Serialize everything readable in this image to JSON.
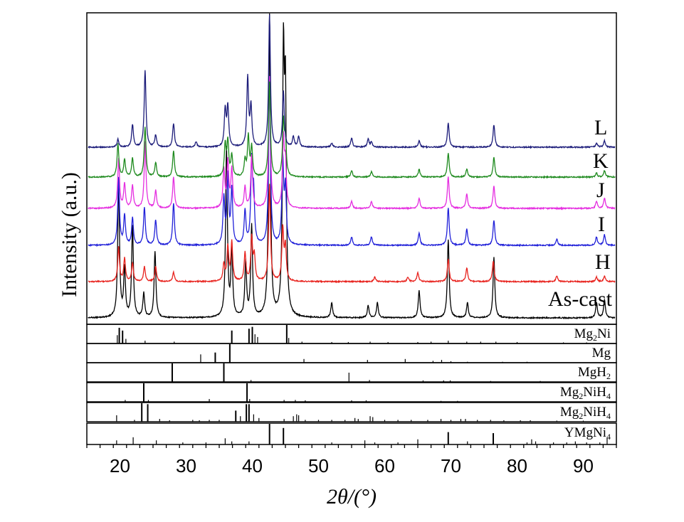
{
  "chart_data": {
    "type": "line",
    "xlabel": "2θ/(°)",
    "ylabel": "Intensity (a.u.)",
    "xlim": [
      15,
      95
    ],
    "x_ticks": [
      "20",
      "30",
      "40",
      "50",
      "60",
      "70",
      "80",
      "90"
    ],
    "grid": false,
    "series": [
      {
        "name": "As-cast",
        "color": "#000000",
        "peaks": [
          [
            19.8,
            45
          ],
          [
            20.7,
            16
          ],
          [
            21.9,
            30
          ],
          [
            23.6,
            8
          ],
          [
            25.3,
            22
          ],
          [
            36.1,
            56
          ],
          [
            36.9,
            22
          ],
          [
            39.0,
            18
          ],
          [
            39.9,
            30
          ],
          [
            42.6,
            100
          ],
          [
            44.7,
            82
          ],
          [
            45.0,
            68
          ],
          [
            52.0,
            5
          ],
          [
            57.5,
            4
          ],
          [
            58.9,
            5
          ],
          [
            65.2,
            9
          ],
          [
            69.6,
            26
          ],
          [
            72.5,
            5
          ],
          [
            76.5,
            20
          ],
          [
            92.0,
            5
          ],
          [
            93.2,
            6
          ]
        ]
      },
      {
        "name": "H",
        "color": "#e8231e",
        "peaks": [
          [
            19.8,
            30
          ],
          [
            20.7,
            20
          ],
          [
            21.9,
            16
          ],
          [
            23.7,
            13
          ],
          [
            25.4,
            13
          ],
          [
            28.1,
            8
          ],
          [
            35.7,
            15
          ],
          [
            36.3,
            30
          ],
          [
            36.9,
            34
          ],
          [
            38.9,
            25
          ],
          [
            39.9,
            38
          ],
          [
            40.3,
            22
          ],
          [
            42.6,
            85
          ],
          [
            44.6,
            46
          ],
          [
            45.0,
            30
          ],
          [
            58.5,
            4
          ],
          [
            63.5,
            4
          ],
          [
            65.0,
            8
          ],
          [
            69.6,
            20
          ],
          [
            72.4,
            12
          ],
          [
            76.4,
            18
          ],
          [
            86.0,
            5
          ],
          [
            92.0,
            4
          ],
          [
            93.2,
            5
          ]
        ]
      },
      {
        "name": "I",
        "color": "#2121d9",
        "peaks": [
          [
            19.8,
            32
          ],
          [
            20.7,
            14
          ],
          [
            21.9,
            13
          ],
          [
            23.7,
            18
          ],
          [
            25.4,
            12
          ],
          [
            28.1,
            20
          ],
          [
            35.7,
            22
          ],
          [
            36.3,
            32
          ],
          [
            36.9,
            26
          ],
          [
            38.9,
            16
          ],
          [
            39.9,
            38
          ],
          [
            40.2,
            22
          ],
          [
            42.6,
            80
          ],
          [
            44.6,
            40
          ],
          [
            45.0,
            26
          ],
          [
            55.0,
            4
          ],
          [
            58.0,
            4
          ],
          [
            65.2,
            6
          ],
          [
            69.6,
            18
          ],
          [
            72.4,
            8
          ],
          [
            76.5,
            12
          ],
          [
            86.0,
            3
          ],
          [
            92.0,
            4
          ],
          [
            93.2,
            5
          ]
        ]
      },
      {
        "name": "J",
        "color": "#e52fe0",
        "peaks": [
          [
            19.8,
            28
          ],
          [
            20.7,
            14
          ],
          [
            21.9,
            13
          ],
          [
            23.8,
            38
          ],
          [
            25.4,
            10
          ],
          [
            28.1,
            18
          ],
          [
            35.7,
            22
          ],
          [
            36.3,
            26
          ],
          [
            36.9,
            22
          ],
          [
            38.9,
            12
          ],
          [
            39.9,
            30
          ],
          [
            42.6,
            75
          ],
          [
            44.7,
            38
          ],
          [
            45.0,
            24
          ],
          [
            55.0,
            4
          ],
          [
            58.0,
            4
          ],
          [
            65.2,
            6
          ],
          [
            69.6,
            18
          ],
          [
            72.4,
            8
          ],
          [
            76.5,
            13
          ],
          [
            92.0,
            4
          ],
          [
            93.2,
            6
          ]
        ]
      },
      {
        "name": "K",
        "color": "#1e8a1e",
        "peaks": [
          [
            19.7,
            25
          ],
          [
            20.7,
            13
          ],
          [
            21.9,
            14
          ],
          [
            23.8,
            38
          ],
          [
            25.4,
            11
          ],
          [
            28.1,
            20
          ],
          [
            35.9,
            24
          ],
          [
            36.3,
            26
          ],
          [
            36.9,
            16
          ],
          [
            38.9,
            12
          ],
          [
            39.4,
            30
          ],
          [
            39.9,
            22
          ],
          [
            42.6,
            72
          ],
          [
            44.7,
            40
          ],
          [
            45.0,
            26
          ],
          [
            55.0,
            5
          ],
          [
            58.0,
            4
          ],
          [
            65.2,
            6
          ],
          [
            69.6,
            18
          ],
          [
            72.4,
            6
          ],
          [
            76.5,
            15
          ],
          [
            92.0,
            3
          ],
          [
            93.2,
            5
          ]
        ]
      },
      {
        "name": "L",
        "color": "#1c1c7a",
        "peaks": [
          [
            19.7,
            6
          ],
          [
            21.9,
            17
          ],
          [
            23.8,
            58
          ],
          [
            25.4,
            9
          ],
          [
            28.1,
            18
          ],
          [
            31.5,
            4
          ],
          [
            35.9,
            28
          ],
          [
            36.3,
            30
          ],
          [
            39.3,
            52
          ],
          [
            39.8,
            30
          ],
          [
            42.6,
            100
          ],
          [
            44.7,
            42
          ],
          [
            46.2,
            8
          ],
          [
            47.0,
            8
          ],
          [
            52.0,
            3
          ],
          [
            55.0,
            7
          ],
          [
            57.5,
            6
          ],
          [
            58.0,
            4
          ],
          [
            65.2,
            5
          ],
          [
            69.6,
            18
          ],
          [
            76.5,
            17
          ],
          [
            92.0,
            3
          ],
          [
            93.2,
            5
          ]
        ]
      }
    ],
    "reference_patterns": [
      {
        "name": "Mg2Ni",
        "lines": [
          [
            19.6,
            0.45
          ],
          [
            19.9,
            0.85
          ],
          [
            20.4,
            0.7
          ],
          [
            20.9,
            0.25
          ],
          [
            23.8,
            0.15
          ],
          [
            28.2,
            0.1
          ],
          [
            36.9,
            0.7
          ],
          [
            39.5,
            0.8
          ],
          [
            40.0,
            0.9
          ],
          [
            40.4,
            0.5
          ],
          [
            40.8,
            0.35
          ],
          [
            45.2,
            1.0
          ],
          [
            45.5,
            0.3
          ],
          [
            47.5,
            0.1
          ],
          [
            52.0,
            0.08
          ],
          [
            54.5,
            0.08
          ],
          [
            57.8,
            0.1
          ],
          [
            60.5,
            0.08
          ],
          [
            65.0,
            0.08
          ],
          [
            67.0,
            0.1
          ],
          [
            69.6,
            0.15
          ],
          [
            72.4,
            0.1
          ],
          [
            74.5,
            0.1
          ],
          [
            76.8,
            0.1
          ],
          [
            80.0,
            0.08
          ],
          [
            87.0,
            0.06
          ],
          [
            90.5,
            0.06
          ]
        ]
      },
      {
        "name": "Mg",
        "lines": [
          [
            32.2,
            0.45
          ],
          [
            34.4,
            0.55
          ],
          [
            36.6,
            1.0
          ],
          [
            47.8,
            0.2
          ],
          [
            57.4,
            0.15
          ],
          [
            63.1,
            0.2
          ],
          [
            67.3,
            0.1
          ],
          [
            68.6,
            0.15
          ],
          [
            70.0,
            0.08
          ],
          [
            72.5,
            0.05
          ],
          [
            77.8,
            0.05
          ],
          [
            81.5,
            0.05
          ]
        ]
      },
      {
        "name": "MgH2",
        "lines": [
          [
            27.9,
            1.0
          ],
          [
            35.7,
            1.0
          ],
          [
            39.8,
            0.1
          ],
          [
            54.6,
            0.5
          ],
          [
            57.7,
            0.1
          ],
          [
            65.8,
            0.08
          ],
          [
            68.9,
            0.08
          ],
          [
            69.9,
            0.08
          ],
          [
            76.0,
            0.05
          ],
          [
            83.5,
            0.05
          ]
        ]
      },
      {
        "name": "Mg2NiH4",
        "lines": [
          [
            20.8,
            0.1
          ],
          [
            23.6,
            1.0
          ],
          [
            24.3,
            0.1
          ],
          [
            33.5,
            0.15
          ],
          [
            39.2,
            1.0
          ],
          [
            39.6,
            0.15
          ],
          [
            44.8,
            0.1
          ],
          [
            46.5,
            0.1
          ],
          [
            48.0,
            0.08
          ],
          [
            55.0,
            0.08
          ],
          [
            57.2,
            0.08
          ],
          [
            68.5,
            0.05
          ],
          [
            71.0,
            0.05
          ]
        ]
      },
      {
        "name": "Mg2NiH4",
        "lines": [
          [
            19.5,
            0.35
          ],
          [
            22.2,
            0.1
          ],
          [
            23.3,
            1.0
          ],
          [
            24.2,
            0.95
          ],
          [
            26.0,
            0.15
          ],
          [
            27.5,
            0.08
          ],
          [
            31.0,
            0.1
          ],
          [
            32.0,
            0.08
          ],
          [
            33.5,
            0.1
          ],
          [
            35.0,
            0.1
          ],
          [
            37.5,
            0.6
          ],
          [
            38.2,
            0.3
          ],
          [
            39.1,
            0.95
          ],
          [
            39.5,
            0.95
          ],
          [
            40.2,
            0.4
          ],
          [
            41.0,
            0.2
          ],
          [
            44.8,
            0.15
          ],
          [
            46.2,
            0.3
          ],
          [
            46.7,
            0.4
          ],
          [
            47.0,
            0.35
          ],
          [
            48.0,
            0.1
          ],
          [
            50.0,
            0.1
          ],
          [
            52.0,
            0.1
          ],
          [
            54.0,
            0.1
          ],
          [
            55.5,
            0.2
          ],
          [
            56.0,
            0.15
          ],
          [
            57.8,
            0.3
          ],
          [
            58.2,
            0.25
          ],
          [
            60.0,
            0.1
          ],
          [
            62.0,
            0.1
          ],
          [
            64.0,
            0.1
          ],
          [
            66.5,
            0.1
          ],
          [
            68.5,
            0.15
          ],
          [
            70.0,
            0.1
          ],
          [
            71.5,
            0.15
          ],
          [
            72.2,
            0.15
          ],
          [
            74.0,
            0.1
          ],
          [
            76.0,
            0.1
          ],
          [
            78.0,
            0.08
          ],
          [
            80.5,
            0.08
          ],
          [
            82.0,
            0.08
          ],
          [
            86.0,
            0.06
          ],
          [
            90.0,
            0.06
          ]
        ]
      },
      {
        "name": "YMgNi4",
        "lines": [
          [
            19.5,
            0.2
          ],
          [
            22.0,
            0.35
          ],
          [
            25.5,
            0.2
          ],
          [
            29.5,
            0.1
          ],
          [
            33.0,
            0.1
          ],
          [
            35.9,
            0.3
          ],
          [
            36.9,
            0.15
          ],
          [
            39.5,
            0.15
          ],
          [
            42.6,
            1.0
          ],
          [
            44.7,
            0.8
          ],
          [
            52.0,
            0.1
          ],
          [
            57.0,
            0.2
          ],
          [
            58.5,
            0.1
          ],
          [
            62.0,
            0.1
          ],
          [
            65.0,
            0.25
          ],
          [
            69.6,
            0.6
          ],
          [
            72.5,
            0.15
          ],
          [
            76.4,
            0.55
          ],
          [
            81.5,
            0.1
          ],
          [
            82.2,
            0.25
          ],
          [
            82.8,
            0.15
          ],
          [
            85.5,
            0.1
          ],
          [
            87.5,
            0.1
          ],
          [
            88.8,
            0.15
          ],
          [
            90.5,
            0.1
          ],
          [
            92.5,
            0.1
          ],
          [
            93.6,
            0.3
          ]
        ]
      }
    ]
  },
  "labels": {
    "as_cast": "As-cast",
    "H": "H",
    "I": "I",
    "J": "J",
    "K": "K",
    "L": "L"
  },
  "ref_labels": [
    {
      "main": "Mg",
      "sub": "2",
      "tail": "Ni"
    },
    {
      "main": "Mg",
      "sub": "",
      "tail": ""
    },
    {
      "main": "MgH",
      "sub": "2",
      "tail": ""
    },
    {
      "main": "Mg",
      "sub": "2",
      "tail": "NiH",
      "sub2": "4"
    },
    {
      "main": "Mg",
      "sub": "2",
      "tail": "NiH",
      "sub2": "4"
    },
    {
      "main": "YMgNi",
      "sub": "4",
      "tail": ""
    }
  ]
}
